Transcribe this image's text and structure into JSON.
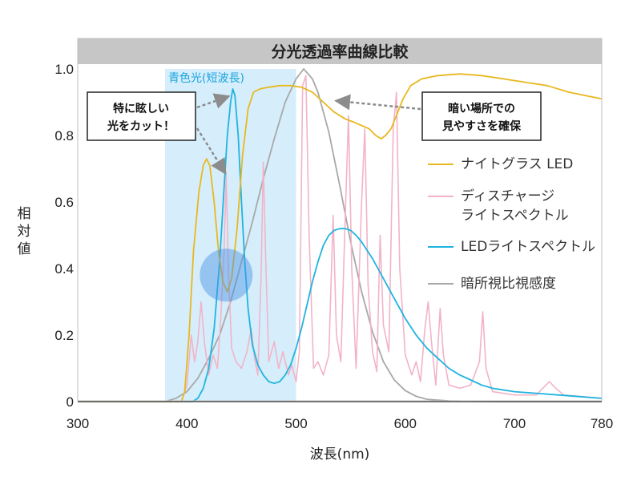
{
  "chart_data": {
    "type": "line",
    "title": "分光透過率曲線比較",
    "xlabel": "波長(nm)",
    "ylabel": "相対値",
    "xlim": [
      300,
      780
    ],
    "ylim": [
      0,
      1.0
    ],
    "x_ticks": [
      "300",
      "400",
      "500",
      "600",
      "700",
      "780"
    ],
    "y_ticks": [
      "0",
      "0.2",
      "0.4",
      "0.6",
      "0.8",
      "1.0"
    ],
    "grid": false,
    "legend_position": "right",
    "highlight_band": {
      "label": "青色光(短波長)",
      "x_range": [
        380,
        500
      ],
      "color": "#d6eefb"
    },
    "highlight_circle": {
      "x": 436,
      "y": 0.38
    },
    "callouts": [
      {
        "lines": [
          "特に眩しい",
          "光をカット！"
        ]
      },
      {
        "lines": [
          "暗い場所での",
          "見やすさを確保"
        ]
      }
    ],
    "series": [
      {
        "name": "ナイトグラス LED",
        "color": "#e8b820",
        "points": [
          [
            300,
            0
          ],
          [
            395,
            0
          ],
          [
            398,
            0.03
          ],
          [
            402,
            0.2
          ],
          [
            406,
            0.45
          ],
          [
            411,
            0.63
          ],
          [
            415,
            0.71
          ],
          [
            418,
            0.73
          ],
          [
            421,
            0.71
          ],
          [
            425,
            0.6
          ],
          [
            429,
            0.45
          ],
          [
            433,
            0.36
          ],
          [
            437,
            0.33
          ],
          [
            441,
            0.37
          ],
          [
            446,
            0.52
          ],
          [
            451,
            0.74
          ],
          [
            456,
            0.88
          ],
          [
            461,
            0.93
          ],
          [
            467,
            0.94
          ],
          [
            475,
            0.945
          ],
          [
            485,
            0.95
          ],
          [
            495,
            0.95
          ],
          [
            505,
            0.945
          ],
          [
            515,
            0.93
          ],
          [
            525,
            0.9
          ],
          [
            535,
            0.87
          ],
          [
            545,
            0.85
          ],
          [
            553,
            0.84
          ],
          [
            560,
            0.83
          ],
          [
            567,
            0.82
          ],
          [
            573,
            0.8
          ],
          [
            578,
            0.79
          ],
          [
            582,
            0.8
          ],
          [
            587,
            0.82
          ],
          [
            592,
            0.86
          ],
          [
            598,
            0.91
          ],
          [
            605,
            0.95
          ],
          [
            615,
            0.97
          ],
          [
            630,
            0.98
          ],
          [
            650,
            0.985
          ],
          [
            670,
            0.98
          ],
          [
            690,
            0.97
          ],
          [
            710,
            0.96
          ],
          [
            730,
            0.95
          ],
          [
            750,
            0.93
          ],
          [
            765,
            0.92
          ],
          [
            780,
            0.91
          ]
        ]
      },
      {
        "name": "ディスチャージライトスペクトル",
        "color": "#f2b3c8",
        "points": [
          [
            300,
            0
          ],
          [
            395,
            0
          ],
          [
            400,
            0.05
          ],
          [
            404,
            0.2
          ],
          [
            407,
            0.12
          ],
          [
            410,
            0.18
          ],
          [
            413,
            0.3
          ],
          [
            416,
            0.18
          ],
          [
            420,
            0.08
          ],
          [
            424,
            0.14
          ],
          [
            428,
            0.1
          ],
          [
            431,
            0.25
          ],
          [
            434,
            0.45
          ],
          [
            436,
            0.68
          ],
          [
            438,
            0.4
          ],
          [
            441,
            0.16
          ],
          [
            445,
            0.12
          ],
          [
            450,
            0.1
          ],
          [
            455,
            0.15
          ],
          [
            459,
            0.22
          ],
          [
            462,
            0.13
          ],
          [
            465,
            0.08
          ],
          [
            468,
            0.38
          ],
          [
            470,
            0.72
          ],
          [
            472,
            0.45
          ],
          [
            475,
            0.12
          ],
          [
            480,
            0.18
          ],
          [
            484,
            0.1
          ],
          [
            488,
            0.15
          ],
          [
            493,
            0.08
          ],
          [
            496,
            0.11
          ],
          [
            500,
            0.06
          ],
          [
            503,
            0.15
          ],
          [
            506,
            0.95
          ],
          [
            509,
            0.98
          ],
          [
            512,
            0.5
          ],
          [
            516,
            0.1
          ],
          [
            520,
            0.12
          ],
          [
            525,
            0.08
          ],
          [
            530,
            0.14
          ],
          [
            534,
            0.56
          ],
          [
            537,
            0.2
          ],
          [
            541,
            0.12
          ],
          [
            545,
            0.55
          ],
          [
            548,
            0.86
          ],
          [
            551,
            0.4
          ],
          [
            555,
            0.1
          ],
          [
            560,
            0.6
          ],
          [
            563,
            0.82
          ],
          [
            566,
            0.35
          ],
          [
            570,
            0.15
          ],
          [
            574,
            0.09
          ],
          [
            577,
            0.5
          ],
          [
            580,
            0.23
          ],
          [
            585,
            0.15
          ],
          [
            589,
            0.82
          ],
          [
            592,
            0.93
          ],
          [
            595,
            0.4
          ],
          [
            600,
            0.14
          ],
          [
            606,
            0.08
          ],
          [
            610,
            0.12
          ],
          [
            614,
            0.06
          ],
          [
            618,
            0.22
          ],
          [
            621,
            0.3
          ],
          [
            624,
            0.18
          ],
          [
            628,
            0.05
          ],
          [
            632,
            0.28
          ],
          [
            635,
            0.14
          ],
          [
            640,
            0.05
          ],
          [
            650,
            0.04
          ],
          [
            660,
            0.05
          ],
          [
            668,
            0.12
          ],
          [
            671,
            0.27
          ],
          [
            674,
            0.1
          ],
          [
            680,
            0.03
          ],
          [
            700,
            0.02
          ],
          [
            720,
            0.02
          ],
          [
            732,
            0.06
          ],
          [
            738,
            0.04
          ],
          [
            745,
            0.02
          ],
          [
            780,
            0.01
          ]
        ]
      },
      {
        "name": "LEDライトスペクトル",
        "color": "#1fb4e0",
        "points": [
          [
            300,
            0
          ],
          [
            405,
            0
          ],
          [
            410,
            0.01
          ],
          [
            415,
            0.04
          ],
          [
            420,
            0.1
          ],
          [
            425,
            0.22
          ],
          [
            430,
            0.42
          ],
          [
            434,
            0.64
          ],
          [
            437,
            0.8
          ],
          [
            440,
            0.9
          ],
          [
            442,
            0.94
          ],
          [
            444,
            0.92
          ],
          [
            447,
            0.8
          ],
          [
            450,
            0.6
          ],
          [
            453,
            0.42
          ],
          [
            456,
            0.28
          ],
          [
            460,
            0.17
          ],
          [
            465,
            0.11
          ],
          [
            470,
            0.08
          ],
          [
            475,
            0.06
          ],
          [
            480,
            0.055
          ],
          [
            485,
            0.06
          ],
          [
            490,
            0.08
          ],
          [
            495,
            0.11
          ],
          [
            500,
            0.16
          ],
          [
            505,
            0.22
          ],
          [
            510,
            0.29
          ],
          [
            515,
            0.36
          ],
          [
            520,
            0.42
          ],
          [
            525,
            0.47
          ],
          [
            530,
            0.5
          ],
          [
            535,
            0.515
          ],
          [
            540,
            0.52
          ],
          [
            545,
            0.52
          ],
          [
            550,
            0.515
          ],
          [
            555,
            0.5
          ],
          [
            560,
            0.48
          ],
          [
            565,
            0.455
          ],
          [
            570,
            0.43
          ],
          [
            575,
            0.4
          ],
          [
            580,
            0.37
          ],
          [
            585,
            0.34
          ],
          [
            590,
            0.31
          ],
          [
            600,
            0.25
          ],
          [
            610,
            0.2
          ],
          [
            620,
            0.16
          ],
          [
            630,
            0.13
          ],
          [
            640,
            0.1
          ],
          [
            650,
            0.08
          ],
          [
            660,
            0.065
          ],
          [
            670,
            0.05
          ],
          [
            680,
            0.04
          ],
          [
            700,
            0.03
          ],
          [
            720,
            0.025
          ],
          [
            740,
            0.02
          ],
          [
            760,
            0.015
          ],
          [
            780,
            0.01
          ]
        ]
      },
      {
        "name": "暗所視比視感度",
        "color": "#a8a8a8",
        "points": [
          [
            300,
            0
          ],
          [
            380,
            0
          ],
          [
            390,
            0.01
          ],
          [
            400,
            0.03
          ],
          [
            410,
            0.07
          ],
          [
            420,
            0.13
          ],
          [
            430,
            0.2
          ],
          [
            440,
            0.3
          ],
          [
            450,
            0.42
          ],
          [
            460,
            0.54
          ],
          [
            470,
            0.67
          ],
          [
            480,
            0.79
          ],
          [
            490,
            0.9
          ],
          [
            500,
            0.97
          ],
          [
            507,
            1.0
          ],
          [
            515,
            0.97
          ],
          [
            520,
            0.93
          ],
          [
            530,
            0.81
          ],
          [
            540,
            0.65
          ],
          [
            550,
            0.48
          ],
          [
            560,
            0.33
          ],
          [
            570,
            0.21
          ],
          [
            580,
            0.12
          ],
          [
            590,
            0.065
          ],
          [
            600,
            0.033
          ],
          [
            610,
            0.016
          ],
          [
            620,
            0.007
          ],
          [
            640,
            0.002
          ],
          [
            680,
            0
          ],
          [
            780,
            0
          ]
        ]
      }
    ],
    "legend": [
      {
        "lines": [
          "ナイトグラス LED"
        ],
        "color": "#e8b820"
      },
      {
        "lines": [
          "ディスチャージ",
          "ライトスペクトル"
        ],
        "color": "#f2b3c8"
      },
      {
        "lines": [
          "LEDライトスペクトル"
        ],
        "color": "#1fb4e0"
      },
      {
        "lines": [
          "暗所視比視感度"
        ],
        "color": "#a8a8a8"
      }
    ]
  }
}
